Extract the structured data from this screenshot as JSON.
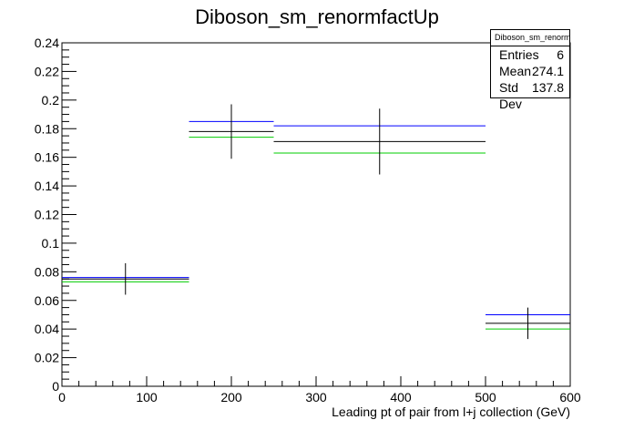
{
  "chart_data": {
    "type": "histogram",
    "title": "Diboson_sm_renormfactUp",
    "xlabel": "Leading pt of pair from l+j collection (GeV)",
    "ylabel": "",
    "xlim": [
      0,
      600
    ],
    "ylim": [
      0,
      0.24
    ],
    "x_ticks": [
      "0",
      "100",
      "200",
      "300",
      "400",
      "500",
      "600"
    ],
    "y_ticks": [
      "0",
      "0.02",
      "0.04",
      "0.06",
      "0.08",
      "0.1",
      "0.12",
      "0.14",
      "0.16",
      "0.18",
      "0.2",
      "0.22",
      "0.24"
    ],
    "grid": false,
    "legend": "none",
    "bins": [
      {
        "low": 0,
        "high": 150,
        "center": 75
      },
      {
        "low": 150,
        "high": 250,
        "center": 200
      },
      {
        "low": 250,
        "high": 500,
        "center": 375
      },
      {
        "low": 500,
        "high": 600,
        "center": 550
      }
    ],
    "series": [
      {
        "color": "#000000",
        "values": [
          0.075,
          0.178,
          0.171,
          0.044
        ],
        "errors": [
          0.011,
          0.019,
          0.023,
          0.011
        ]
      },
      {
        "color": "#0000ff",
        "values": [
          0.076,
          0.185,
          0.182,
          0.05
        ]
      },
      {
        "color": "#00cc00",
        "values": [
          0.073,
          0.174,
          0.163,
          0.04
        ]
      }
    ],
    "stats": {
      "name": "Diboson_sm_renormfactUp",
      "rows": [
        {
          "label": "Entries",
          "value": "6"
        },
        {
          "label": "Mean",
          "value": "274.1"
        },
        {
          "label": "Std Dev",
          "value": "137.8"
        }
      ]
    }
  }
}
